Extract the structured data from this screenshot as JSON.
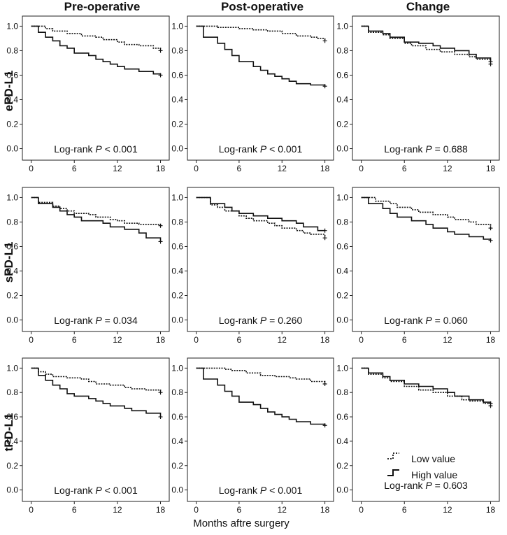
{
  "figure": {
    "column_titles": [
      "Pre-operative",
      "Post-operative",
      "Change"
    ],
    "row_labels": [
      "ePD-L1",
      "sPD-L1",
      "tPD-L1"
    ],
    "xlabel": "Months aftre surgery",
    "legend": {
      "low": "Low value",
      "high": "High value"
    }
  },
  "chart_data": {
    "type": "line",
    "subtype": "kaplan-meier-grid",
    "xlim": [
      0,
      18.6
    ],
    "ylim": [
      0,
      1.0
    ],
    "x_ticks": [
      0,
      6,
      12,
      18
    ],
    "y_ticks": [
      "0.0",
      "0.2",
      "0.4",
      "0.6",
      "0.8",
      "1.0"
    ],
    "series_names": [
      "Low value",
      "High value"
    ],
    "panels": [
      {
        "row": "ePD-L1",
        "col": "Pre-operative",
        "pvalue_label": "Log-rank",
        "pvalue_sym": "P",
        "pvalue_text": "< 0.001",
        "low": [
          [
            0,
            1.0
          ],
          [
            2,
            0.98
          ],
          [
            3,
            0.96
          ],
          [
            5,
            0.94
          ],
          [
            7,
            0.92
          ],
          [
            9,
            0.91
          ],
          [
            10,
            0.89
          ],
          [
            12,
            0.87
          ],
          [
            13,
            0.85
          ],
          [
            15,
            0.84
          ],
          [
            17,
            0.82
          ],
          [
            18,
            0.8
          ]
        ],
        "high": [
          [
            0,
            1.0
          ],
          [
            1,
            0.95
          ],
          [
            2,
            0.91
          ],
          [
            3,
            0.88
          ],
          [
            4,
            0.84
          ],
          [
            5,
            0.82
          ],
          [
            6,
            0.78
          ],
          [
            8,
            0.76
          ],
          [
            9,
            0.73
          ],
          [
            10,
            0.71
          ],
          [
            11,
            0.69
          ],
          [
            12,
            0.67
          ],
          [
            13,
            0.65
          ],
          [
            15,
            0.63
          ],
          [
            17,
            0.61
          ],
          [
            18,
            0.6
          ]
        ]
      },
      {
        "row": "ePD-L1",
        "col": "Post-operative",
        "pvalue_label": "Log-rank",
        "pvalue_sym": "P",
        "pvalue_text": "< 0.001",
        "low": [
          [
            0,
            1.0
          ],
          [
            3,
            0.99
          ],
          [
            6,
            0.98
          ],
          [
            8,
            0.97
          ],
          [
            10,
            0.96
          ],
          [
            12,
            0.94
          ],
          [
            14,
            0.92
          ],
          [
            16,
            0.91
          ],
          [
            17,
            0.9
          ],
          [
            18,
            0.88
          ]
        ],
        "high": [
          [
            0,
            1.0
          ],
          [
            1,
            0.91
          ],
          [
            3,
            0.86
          ],
          [
            4,
            0.81
          ],
          [
            5,
            0.76
          ],
          [
            6,
            0.71
          ],
          [
            8,
            0.67
          ],
          [
            9,
            0.64
          ],
          [
            10,
            0.61
          ],
          [
            11,
            0.59
          ],
          [
            12,
            0.57
          ],
          [
            13,
            0.55
          ],
          [
            14,
            0.53
          ],
          [
            16,
            0.52
          ],
          [
            18,
            0.51
          ]
        ]
      },
      {
        "row": "ePD-L1",
        "col": "Change",
        "pvalue_label": "Log-rank",
        "pvalue_sym": "P",
        "pvalue_text": "= 0.688",
        "low": [
          [
            0,
            1.0
          ],
          [
            1,
            0.95
          ],
          [
            3,
            0.93
          ],
          [
            4,
            0.9
          ],
          [
            6,
            0.86
          ],
          [
            7,
            0.84
          ],
          [
            9,
            0.81
          ],
          [
            11,
            0.79
          ],
          [
            13,
            0.77
          ],
          [
            15,
            0.75
          ],
          [
            16,
            0.73
          ],
          [
            18,
            0.69
          ]
        ],
        "high": [
          [
            0,
            1.0
          ],
          [
            1,
            0.96
          ],
          [
            3,
            0.94
          ],
          [
            4,
            0.91
          ],
          [
            6,
            0.87
          ],
          [
            8,
            0.86
          ],
          [
            10,
            0.84
          ],
          [
            11,
            0.82
          ],
          [
            13,
            0.8
          ],
          [
            15,
            0.77
          ],
          [
            16,
            0.74
          ],
          [
            18,
            0.71
          ]
        ]
      },
      {
        "row": "sPD-L1",
        "col": "Pre-operative",
        "pvalue_label": "Log-rank",
        "pvalue_sym": "P",
        "pvalue_text": "= 0.034",
        "low": [
          [
            0,
            1.0
          ],
          [
            1,
            0.96
          ],
          [
            3,
            0.93
          ],
          [
            4,
            0.91
          ],
          [
            5,
            0.89
          ],
          [
            6,
            0.87
          ],
          [
            8,
            0.86
          ],
          [
            9,
            0.84
          ],
          [
            11,
            0.82
          ],
          [
            12,
            0.81
          ],
          [
            13,
            0.79
          ],
          [
            15,
            0.78
          ],
          [
            18,
            0.77
          ]
        ],
        "high": [
          [
            0,
            1.0
          ],
          [
            1,
            0.95
          ],
          [
            3,
            0.92
          ],
          [
            4,
            0.89
          ],
          [
            5,
            0.86
          ],
          [
            6,
            0.84
          ],
          [
            7,
            0.81
          ],
          [
            10,
            0.79
          ],
          [
            11,
            0.76
          ],
          [
            13,
            0.74
          ],
          [
            15,
            0.71
          ],
          [
            16,
            0.67
          ],
          [
            18,
            0.64
          ]
        ]
      },
      {
        "row": "sPD-L1",
        "col": "Post-operative",
        "pvalue_label": "Log-rank",
        "pvalue_sym": "P",
        "pvalue_text": "= 0.260",
        "low": [
          [
            0,
            1.0
          ],
          [
            2,
            0.94
          ],
          [
            3,
            0.92
          ],
          [
            4,
            0.89
          ],
          [
            6,
            0.85
          ],
          [
            7,
            0.83
          ],
          [
            8,
            0.81
          ],
          [
            10,
            0.79
          ],
          [
            11,
            0.77
          ],
          [
            12,
            0.75
          ],
          [
            14,
            0.73
          ],
          [
            15,
            0.71
          ],
          [
            16,
            0.7
          ],
          [
            18,
            0.67
          ]
        ],
        "high": [
          [
            0,
            1.0
          ],
          [
            2,
            0.95
          ],
          [
            4,
            0.92
          ],
          [
            5,
            0.89
          ],
          [
            6,
            0.87
          ],
          [
            8,
            0.85
          ],
          [
            10,
            0.83
          ],
          [
            12,
            0.81
          ],
          [
            14,
            0.79
          ],
          [
            15,
            0.76
          ],
          [
            17,
            0.73
          ],
          [
            18,
            0.73
          ]
        ]
      },
      {
        "row": "sPD-L1",
        "col": "Change",
        "pvalue_label": "Log-rank",
        "pvalue_sym": "P",
        "pvalue_text": "= 0.060",
        "low": [
          [
            0,
            1.0
          ],
          [
            2,
            0.97
          ],
          [
            4,
            0.95
          ],
          [
            5,
            0.92
          ],
          [
            7,
            0.9
          ],
          [
            8,
            0.88
          ],
          [
            10,
            0.86
          ],
          [
            12,
            0.84
          ],
          [
            13,
            0.82
          ],
          [
            15,
            0.8
          ],
          [
            16,
            0.78
          ],
          [
            18,
            0.75
          ]
        ],
        "high": [
          [
            0,
            1.0
          ],
          [
            1,
            0.95
          ],
          [
            3,
            0.91
          ],
          [
            4,
            0.87
          ],
          [
            5,
            0.84
          ],
          [
            7,
            0.81
          ],
          [
            9,
            0.78
          ],
          [
            10,
            0.75
          ],
          [
            12,
            0.72
          ],
          [
            13,
            0.7
          ],
          [
            15,
            0.68
          ],
          [
            17,
            0.66
          ],
          [
            18,
            0.65
          ]
        ]
      },
      {
        "row": "tPD-L1",
        "col": "Pre-operative",
        "pvalue_label": "Log-rank",
        "pvalue_sym": "P",
        "pvalue_text": "< 0.001",
        "low": [
          [
            0,
            1.0
          ],
          [
            1,
            0.97
          ],
          [
            2,
            0.95
          ],
          [
            3,
            0.93
          ],
          [
            5,
            0.92
          ],
          [
            7,
            0.91
          ],
          [
            8,
            0.89
          ],
          [
            9,
            0.87
          ],
          [
            11,
            0.86
          ],
          [
            13,
            0.84
          ],
          [
            14,
            0.83
          ],
          [
            16,
            0.82
          ],
          [
            18,
            0.8
          ]
        ],
        "high": [
          [
            0,
            1.0
          ],
          [
            1,
            0.94
          ],
          [
            2,
            0.9
          ],
          [
            3,
            0.86
          ],
          [
            4,
            0.83
          ],
          [
            5,
            0.79
          ],
          [
            6,
            0.77
          ],
          [
            8,
            0.75
          ],
          [
            9,
            0.73
          ],
          [
            10,
            0.71
          ],
          [
            11,
            0.69
          ],
          [
            13,
            0.67
          ],
          [
            14,
            0.65
          ],
          [
            16,
            0.63
          ],
          [
            18,
            0.6
          ]
        ]
      },
      {
        "row": "tPD-L1",
        "col": "Post-operative",
        "pvalue_label": "Log-rank",
        "pvalue_sym": "P",
        "pvalue_text": "< 0.001",
        "low": [
          [
            0,
            1.0
          ],
          [
            4,
            0.99
          ],
          [
            5,
            0.98
          ],
          [
            7,
            0.96
          ],
          [
            9,
            0.94
          ],
          [
            11,
            0.93
          ],
          [
            13,
            0.92
          ],
          [
            14,
            0.91
          ],
          [
            16,
            0.89
          ],
          [
            18,
            0.87
          ]
        ],
        "high": [
          [
            0,
            1.0
          ],
          [
            1,
            0.91
          ],
          [
            3,
            0.86
          ],
          [
            4,
            0.81
          ],
          [
            5,
            0.77
          ],
          [
            6,
            0.72
          ],
          [
            8,
            0.7
          ],
          [
            9,
            0.67
          ],
          [
            10,
            0.64
          ],
          [
            11,
            0.62
          ],
          [
            12,
            0.6
          ],
          [
            13,
            0.58
          ],
          [
            14,
            0.56
          ],
          [
            16,
            0.54
          ],
          [
            18,
            0.53
          ]
        ]
      },
      {
        "row": "tPD-L1",
        "col": "Change",
        "pvalue_label": "Log-rank",
        "pvalue_sym": "P",
        "pvalue_text": "= 0.603",
        "low": [
          [
            0,
            1.0
          ],
          [
            1,
            0.95
          ],
          [
            3,
            0.92
          ],
          [
            4,
            0.89
          ],
          [
            6,
            0.85
          ],
          [
            8,
            0.82
          ],
          [
            10,
            0.8
          ],
          [
            12,
            0.77
          ],
          [
            14,
            0.74
          ],
          [
            15,
            0.73
          ],
          [
            17,
            0.71
          ],
          [
            18,
            0.69
          ]
        ],
        "high": [
          [
            0,
            1.0
          ],
          [
            1,
            0.96
          ],
          [
            3,
            0.93
          ],
          [
            4,
            0.9
          ],
          [
            6,
            0.87
          ],
          [
            8,
            0.85
          ],
          [
            10,
            0.83
          ],
          [
            12,
            0.8
          ],
          [
            13,
            0.77
          ],
          [
            15,
            0.74
          ],
          [
            17,
            0.72
          ],
          [
            18,
            0.71
          ]
        ]
      }
    ]
  }
}
